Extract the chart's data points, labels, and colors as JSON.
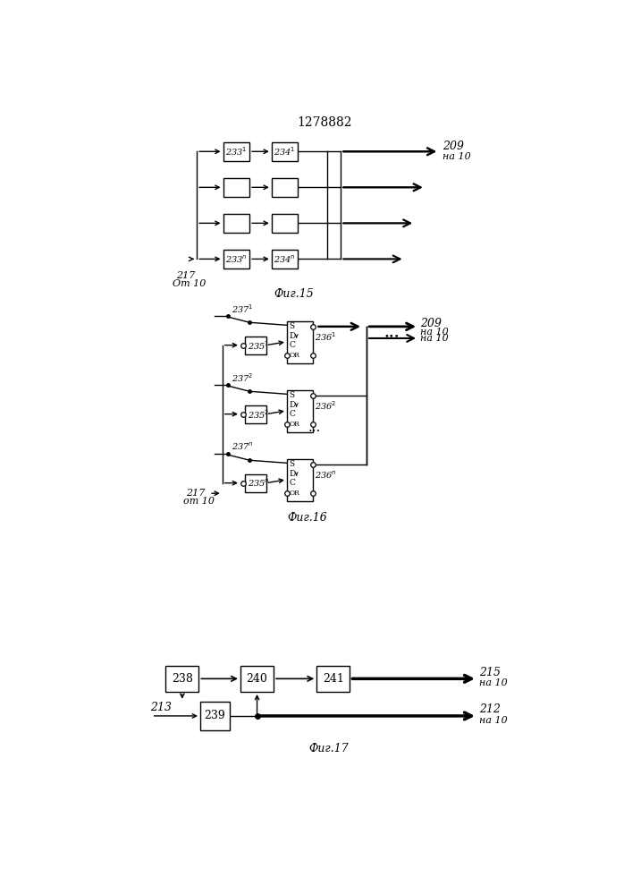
{
  "title": "1278882",
  "bg": "#ffffff",
  "fig15_label": "Фиг.15",
  "fig16_label": "Фиг.16",
  "fig17_label": "Фиг.17"
}
